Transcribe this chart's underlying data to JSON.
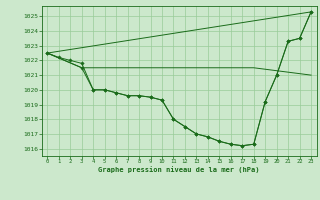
{
  "background_color": "#cce8cc",
  "grid_color": "#99cc99",
  "line_color": "#1a6b1a",
  "title": "Graphe pression niveau de la mer (hPa)",
  "xlim": [
    -0.5,
    23.5
  ],
  "ylim": [
    1015.5,
    1025.7
  ],
  "yticks": [
    1016,
    1017,
    1018,
    1019,
    1020,
    1021,
    1022,
    1023,
    1024,
    1025
  ],
  "xticks": [
    0,
    1,
    2,
    3,
    4,
    5,
    6,
    7,
    8,
    9,
    10,
    11,
    12,
    13,
    14,
    15,
    16,
    17,
    18,
    19,
    20,
    21,
    22,
    23
  ],
  "lines": [
    {
      "x": [
        0,
        23
      ],
      "y": [
        1022.5,
        1025.3
      ],
      "has_markers": false
    },
    {
      "x": [
        0,
        3,
        18,
        23
      ],
      "y": [
        1022.5,
        1021.5,
        1021.5,
        1021.0
      ],
      "has_markers": false
    },
    {
      "x": [
        0,
        1,
        2,
        3,
        4,
        5,
        6,
        7,
        8,
        9,
        10,
        11,
        12,
        13,
        14,
        15,
        16,
        17,
        18,
        19,
        20,
        21,
        22,
        23
      ],
      "y": [
        1022.5,
        1022.2,
        1022.0,
        1021.8,
        1020.0,
        1020.0,
        1019.8,
        1019.6,
        1019.6,
        1019.5,
        1019.3,
        1018.0,
        1017.5,
        1017.0,
        1016.8,
        1016.5,
        1016.3,
        1016.2,
        1016.3,
        1019.2,
        1021.0,
        1023.3,
        1023.5,
        1025.3
      ],
      "has_markers": true
    },
    {
      "x": [
        0,
        3,
        4,
        5,
        6,
        7,
        8,
        9,
        10,
        11,
        12,
        13,
        14,
        15,
        16,
        17,
        18,
        19,
        20,
        21,
        22,
        23
      ],
      "y": [
        1022.5,
        1021.5,
        1020.0,
        1020.0,
        1019.8,
        1019.6,
        1019.6,
        1019.5,
        1019.3,
        1018.0,
        1017.5,
        1017.0,
        1016.8,
        1016.5,
        1016.3,
        1016.2,
        1016.3,
        1019.2,
        1021.0,
        1023.3,
        1023.5,
        1025.3
      ],
      "has_markers": true
    }
  ]
}
